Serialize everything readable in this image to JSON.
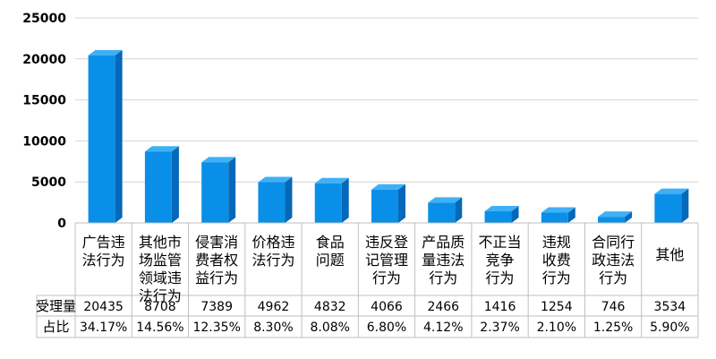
{
  "chart_data": {
    "type": "bar",
    "title": "",
    "xlabel": "",
    "ylabel": "",
    "ylim": [
      0,
      25000
    ],
    "yticks": [
      0,
      5000,
      10000,
      15000,
      20000,
      25000
    ],
    "grid": true,
    "bar_style": "3d",
    "colors": {
      "bar_front": "#0A8FE8",
      "bar_top": "#3FB0F5",
      "bar_side": "#0568B8",
      "grid": "#d4d4d4",
      "table_border": "#bfbfbf"
    },
    "categories": [
      [
        "广告违",
        "法行为"
      ],
      [
        "其他市",
        "场监管",
        "领域违",
        "法行为"
      ],
      [
        "侵害消",
        "费者权",
        "益行为"
      ],
      [
        "价格违",
        "法行为"
      ],
      [
        "食品",
        "问题"
      ],
      [
        "违反登",
        "记管理",
        "行为"
      ],
      [
        "产品质",
        "量违法",
        "行为"
      ],
      [
        "不正当",
        "竞争",
        "行为"
      ],
      [
        "违规",
        "收费",
        "行为"
      ],
      [
        "合同行",
        "政违法",
        "行为"
      ],
      [
        "其他"
      ]
    ],
    "series": [
      {
        "name": "受理量",
        "values": [
          20435,
          8708,
          7389,
          4962,
          4832,
          4066,
          2466,
          1416,
          1254,
          746,
          3534
        ]
      }
    ],
    "table": {
      "rows": [
        {
          "label": "受理量",
          "cells": [
            "20435",
            "8708",
            "7389",
            "4962",
            "4832",
            "4066",
            "2466",
            "1416",
            "1254",
            "746",
            "3534"
          ]
        },
        {
          "label": "占比",
          "cells": [
            "34.17%",
            "14.56%",
            "12.35%",
            "8.30%",
            "8.08%",
            "6.80%",
            "4.12%",
            "2.37%",
            "2.10%",
            "1.25%",
            "5.90%"
          ]
        }
      ]
    }
  }
}
